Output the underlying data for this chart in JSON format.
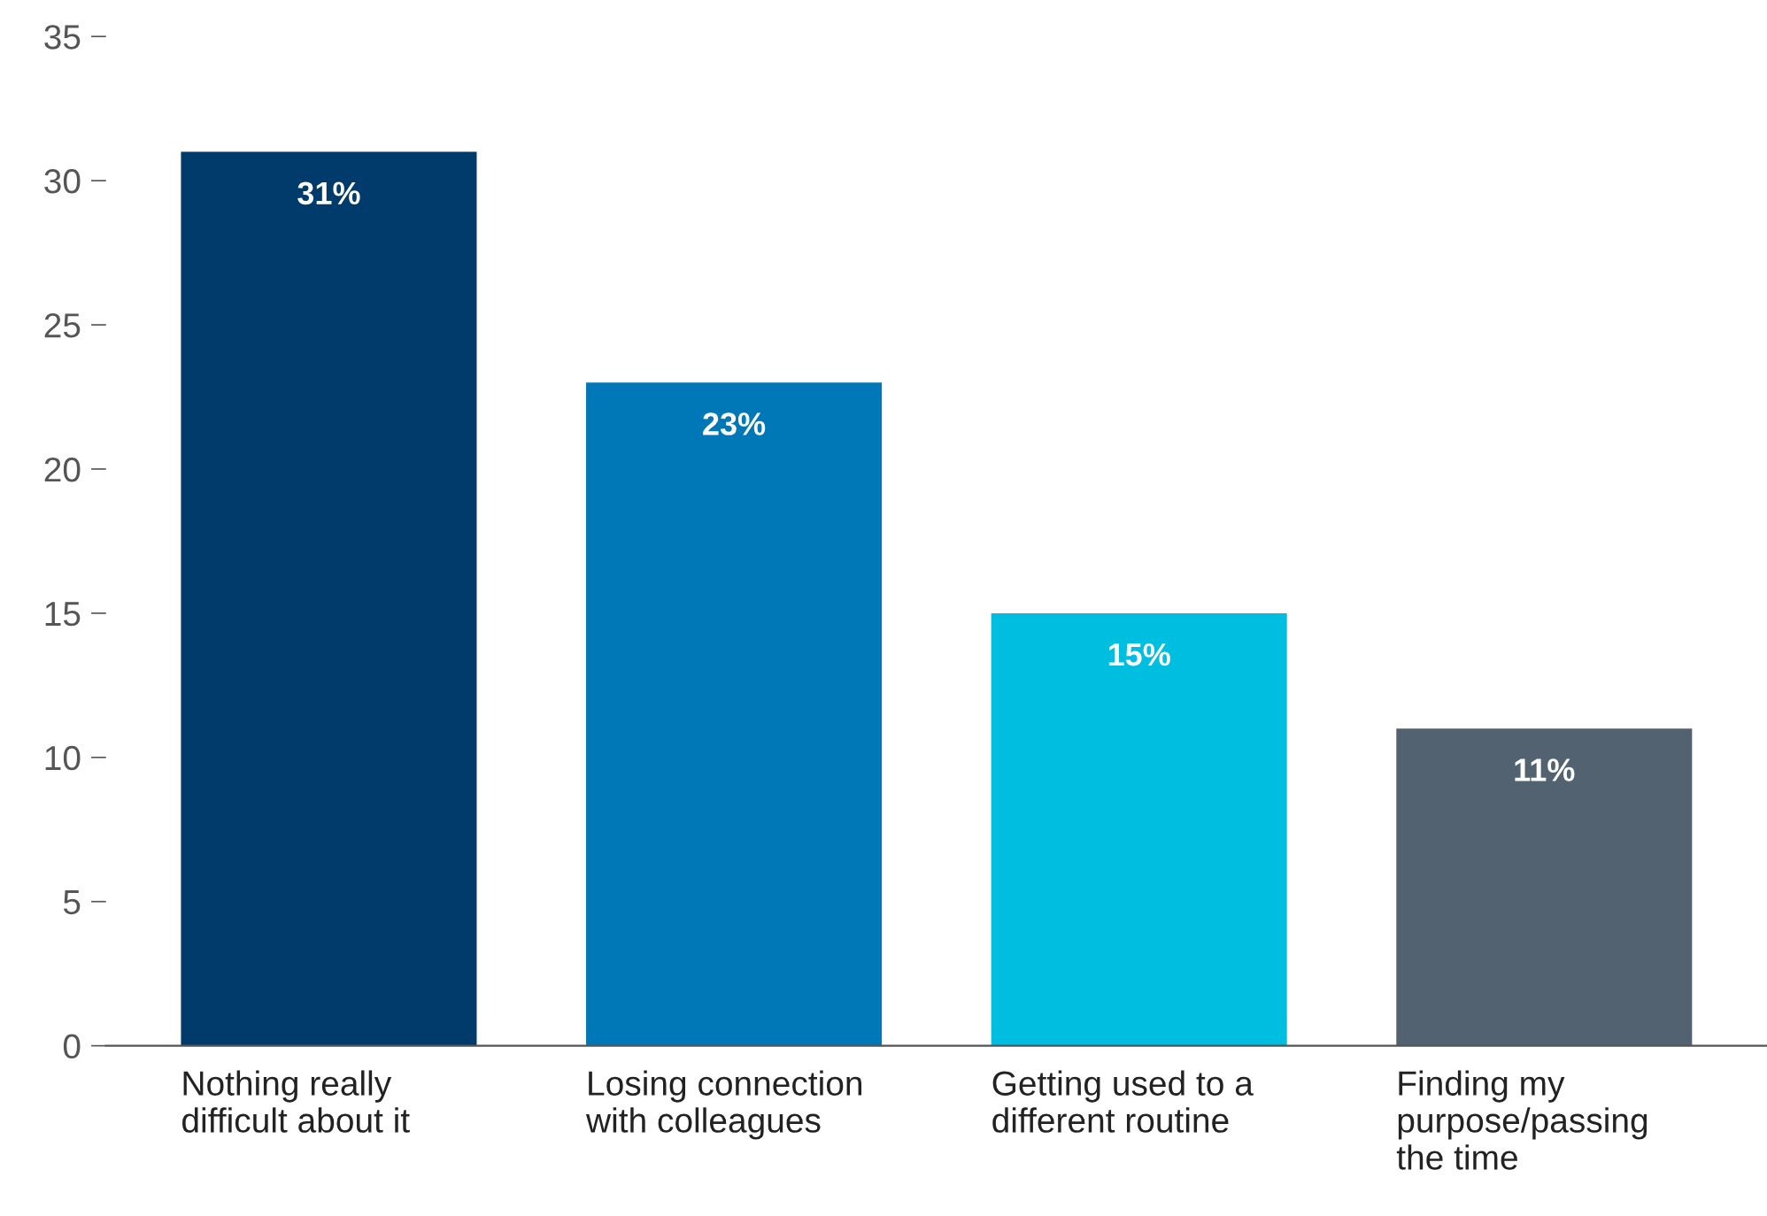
{
  "chart_data": {
    "type": "bar",
    "categories": [
      "Nothing really\ndifficult about it",
      "Losing connection\nwith colleagues",
      "Getting used to a\ndifferent routine",
      "Finding my\npurpose/passing\nthe time"
    ],
    "values": [
      31,
      23,
      15,
      11
    ],
    "colors": [
      "#003b6b",
      "#0078b7",
      "#00bedf",
      "#526270"
    ],
    "value_labels": [
      "31%",
      "23%",
      "15%",
      "11%"
    ],
    "ylim": [
      0,
      35
    ],
    "yticks": [
      0,
      5,
      10,
      15,
      20,
      25,
      30,
      35
    ],
    "grid": false,
    "legend": false
  }
}
